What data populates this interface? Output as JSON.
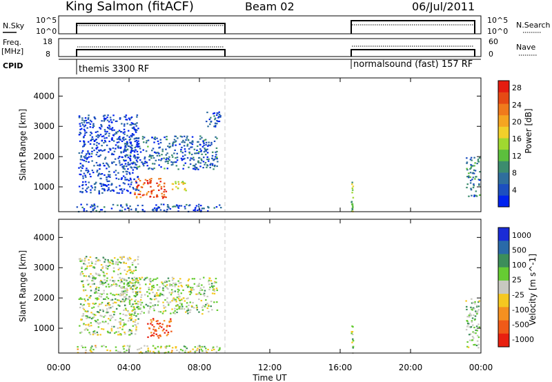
{
  "header": {
    "station": "King Salmon (fitACF)",
    "beam": "Beam 02",
    "date": "06/Jul/2011"
  },
  "strips": {
    "nsky_label": "N.Sky",
    "nsky_ticks": [
      "10^5",
      "10^0"
    ],
    "nsearch_label": "N.Search",
    "nsearch_ticks": [
      "10^5",
      "10^0"
    ],
    "freq_label": "Freq.",
    "freq_unit": "[MHz]",
    "freq_ticks": [
      "18",
      "8"
    ],
    "nave_label": "Nave",
    "nave_ticks": [
      "60",
      "0"
    ],
    "cpid_label": "CPID",
    "cpid_blocks": [
      {
        "name": "themis 3300 RF",
        "start": "01:00",
        "end": "09:20"
      },
      {
        "name": "normalsound (fast) 157 RF",
        "start": "16:40",
        "end": "23:59"
      }
    ]
  },
  "chart_data": [
    {
      "type": "heatmap",
      "name": "power",
      "ylabel": "Slant Range [km]",
      "yticks": [
        1000,
        2000,
        3000,
        4000
      ],
      "ylim": [
        180,
        4600
      ],
      "xlabel": "Time UT",
      "xticks": [
        "00:00",
        "04:00",
        "08:00",
        "12:00",
        "16:00",
        "20:00",
        "00:00"
      ],
      "xlim_hours": [
        0,
        24
      ],
      "colorbar": {
        "label": "Power [dB]",
        "ticks": [
          "4",
          "8",
          "12",
          "16",
          "20",
          "24",
          "28"
        ],
        "colors": [
          "#0022ee",
          "#1d4fbf",
          "#2f6e9d",
          "#3c8c6e",
          "#5cbf3d",
          "#a0d830",
          "#f1d02a",
          "#f5a521",
          "#f07a1c",
          "#e64a14",
          "#e41c10"
        ]
      },
      "clusters": [
        {
          "t": [
            1.0,
            9.2
          ],
          "r": [
            200,
            450
          ],
          "level": 0.15
        },
        {
          "t": [
            4.2,
            6.1
          ],
          "r": [
            650,
            1300
          ],
          "level": 0.85
        },
        {
          "t": [
            6.4,
            7.3
          ],
          "r": [
            900,
            1250
          ],
          "level": 0.55
        },
        {
          "t": [
            3.6,
            9.0
          ],
          "r": [
            1600,
            2700
          ],
          "level": 0.2
        },
        {
          "t": [
            1.1,
            4.5
          ],
          "r": [
            800,
            3400
          ],
          "level": 0.1
        },
        {
          "t": [
            8.3,
            9.2
          ],
          "r": [
            2900,
            3500
          ],
          "level": 0.15
        },
        {
          "t": [
            16.6,
            16.7
          ],
          "r": [
            200,
            1200
          ],
          "level": 0.45
        },
        {
          "t": [
            23.1,
            23.9
          ],
          "r": [
            700,
            2000
          ],
          "level": 0.25
        }
      ]
    },
    {
      "type": "heatmap",
      "name": "velocity",
      "ylabel": "Slant Range [km]",
      "yticks": [
        1000,
        2000,
        3000,
        4000
      ],
      "ylim": [
        180,
        4600
      ],
      "xlabel": "Time UT",
      "xticks": [
        "00:00",
        "04:00",
        "08:00",
        "12:00",
        "16:00",
        "20:00",
        "00:00"
      ],
      "xlim_hours": [
        0,
        24
      ],
      "colorbar": {
        "label": "Velocity [m s^-1]",
        "ticks": [
          "1000",
          "500",
          "100",
          "25",
          "-25",
          "-100",
          "-500",
          "-1000"
        ],
        "colors": [
          "#1a2bd6",
          "#2a6aa8",
          "#3c8e5a",
          "#66cc33",
          "#c8c8c0",
          "#f5c820",
          "#f59020",
          "#f05a18",
          "#e82010"
        ]
      },
      "clusters": [
        {
          "t": [
            1.0,
            9.2
          ],
          "r": [
            200,
            450
          ],
          "level": 0.5
        },
        {
          "t": [
            5.0,
            6.4
          ],
          "r": [
            700,
            1350
          ],
          "level": 0.85
        },
        {
          "t": [
            3.5,
            9.0
          ],
          "r": [
            1500,
            2700
          ],
          "level": 0.45
        },
        {
          "t": [
            1.1,
            4.5
          ],
          "r": [
            800,
            3400
          ],
          "level": 0.45
        },
        {
          "t": [
            16.6,
            16.7
          ],
          "r": [
            200,
            1200
          ],
          "level": 0.45
        },
        {
          "t": [
            23.1,
            23.9
          ],
          "r": [
            300,
            2000
          ],
          "level": 0.4
        }
      ]
    }
  ]
}
